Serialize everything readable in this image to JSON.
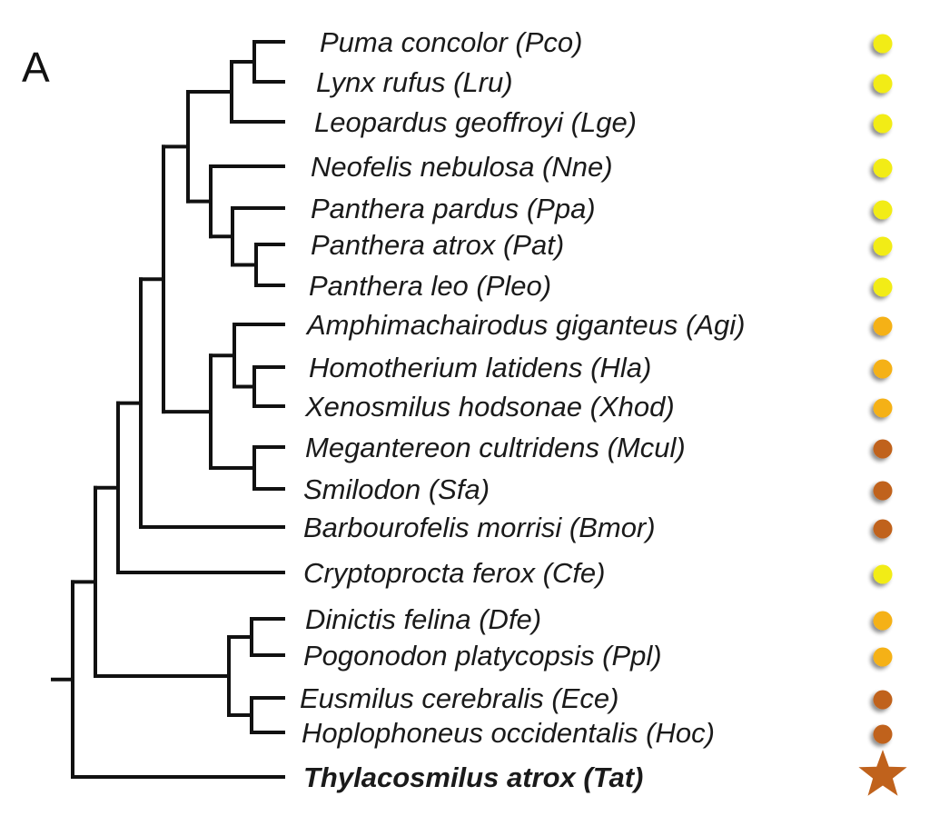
{
  "figure": {
    "panel_letter": "A"
  },
  "colors": {
    "yellow": "#f2ec12",
    "orange": "#f5b116",
    "brown": "#c0621c",
    "branch": "#111111"
  },
  "taxa": [
    {
      "label": "Puma concolor (Pco)",
      "marker": "yellow",
      "shape": "circle"
    },
    {
      "label": "Lynx rufus (Lru)",
      "marker": "yellow",
      "shape": "circle"
    },
    {
      "label": "Leopardus geoffroyi (Lge)",
      "marker": "yellow",
      "shape": "circle"
    },
    {
      "label": "Neofelis nebulosa (Nne)",
      "marker": "yellow",
      "shape": "circle"
    },
    {
      "label": "Panthera pardus (Ppa)",
      "marker": "yellow",
      "shape": "circle"
    },
    {
      "label": "Panthera atrox (Pat)",
      "marker": "yellow",
      "shape": "circle"
    },
    {
      "label": "Panthera leo (Pleo)",
      "marker": "yellow",
      "shape": "circle"
    },
    {
      "label": "Amphimachairodus giganteus (Agi)",
      "marker": "orange",
      "shape": "circle"
    },
    {
      "label": "Homotherium latidens (Hla)",
      "marker": "orange",
      "shape": "circle"
    },
    {
      "label": "Xenosmilus hodsonae (Xhod)",
      "marker": "orange",
      "shape": "circle"
    },
    {
      "label": "Megantereon cultridens (Mcul)",
      "marker": "brown",
      "shape": "circle"
    },
    {
      "label": "Smilodon (Sfa)",
      "marker": "brown",
      "shape": "circle"
    },
    {
      "label": "Barbourofelis morrisi (Bmor)",
      "marker": "brown",
      "shape": "circle"
    },
    {
      "label": "Cryptoprocta ferox (Cfe)",
      "marker": "yellow",
      "shape": "circle"
    },
    {
      "label": "Dinictis felina (Dfe)",
      "marker": "orange",
      "shape": "circle"
    },
    {
      "label": "Pogonodon platycopsis (Ppl)",
      "marker": "orange",
      "shape": "circle"
    },
    {
      "label": "Eusmilus cerebralis (Ece)",
      "marker": "brown",
      "shape": "circle"
    },
    {
      "label": "Hoplophoneus occidentalis (Hoc)",
      "marker": "brown",
      "shape": "circle"
    },
    {
      "label": "Thylacosmilus atrox (Tat)",
      "marker": "brown",
      "shape": "star",
      "bold": true
    }
  ]
}
